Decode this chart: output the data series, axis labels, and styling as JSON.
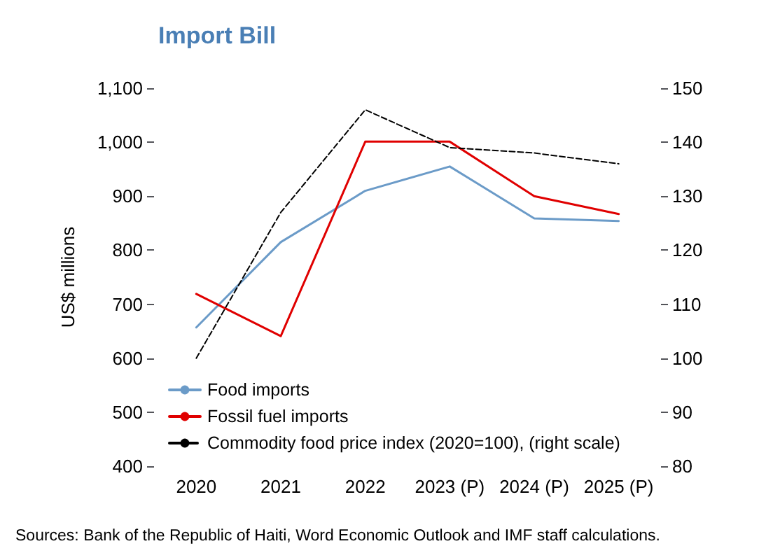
{
  "chart_data": {
    "type": "line",
    "title": "Import Bill",
    "ylabel": "US$ millions",
    "categories": [
      "2020",
      "2021",
      "2022",
      "2023 (P)",
      "2024 (P)",
      "2025 (P)"
    ],
    "series": [
      {
        "name": "Food imports",
        "color": "#6b9bc8",
        "values": [
          657,
          815,
          910,
          955,
          859,
          854
        ]
      },
      {
        "name": "Fossil fuel imports",
        "color": "#e00000",
        "values": [
          719,
          641,
          1001,
          1001,
          900,
          867
        ]
      },
      {
        "name": "Commodity food price index (2020=100), (right scale)",
        "color": "#000000",
        "axis": "y2",
        "line_style": "dashed",
        "values": [
          100,
          127,
          146,
          139,
          138,
          136
        ]
      }
    ],
    "ylim": [
      400,
      1100
    ],
    "yticks": [
      400,
      500,
      600,
      700,
      800,
      900,
      {
        "value": 1000,
        "label": "1,000"
      },
      {
        "value": 1100,
        "label": "1,100"
      }
    ],
    "y2lim": [
      80,
      150
    ],
    "y2ticks": [
      80,
      90,
      100,
      110,
      120,
      130,
      140,
      150
    ],
    "grid": false,
    "legend": "bottom left",
    "marker": "none",
    "line_style": "solid",
    "annotations": [
      "Sources: Bank of the Republic of Haiti, Word Economic Outlook and IMF staff calculations."
    ]
  }
}
